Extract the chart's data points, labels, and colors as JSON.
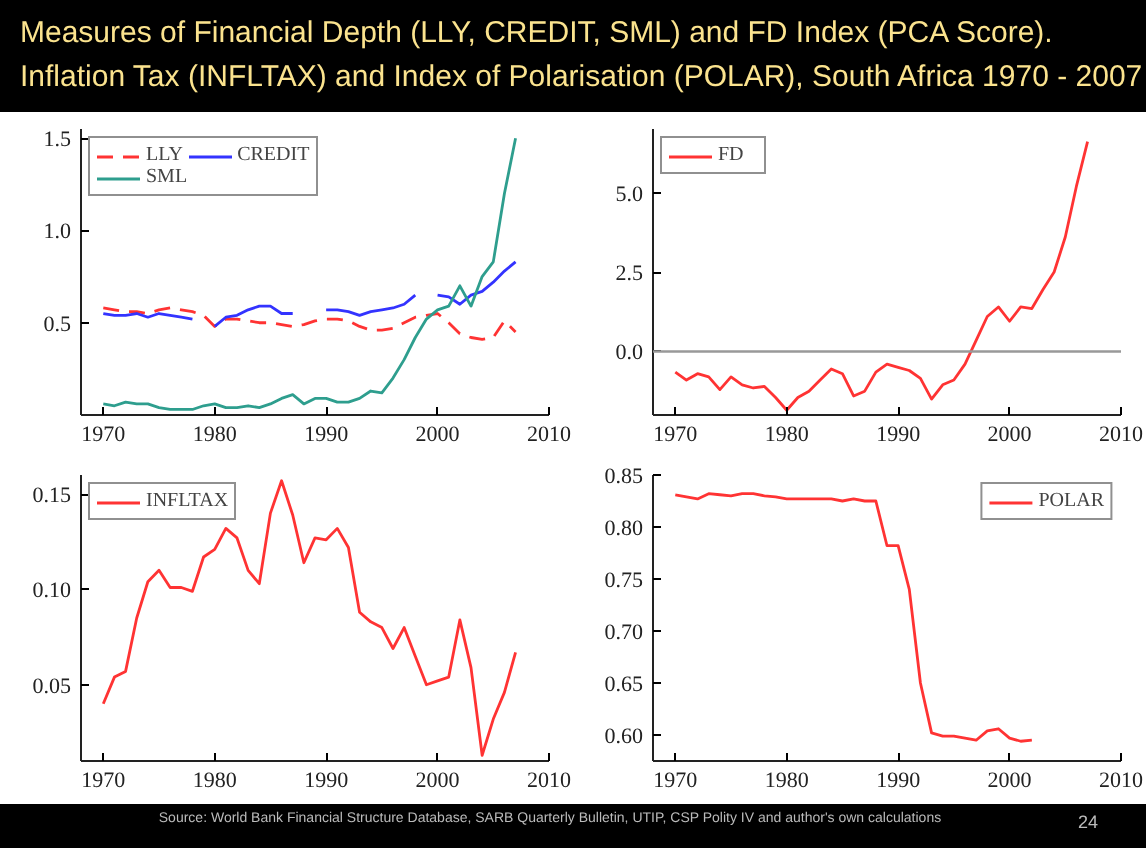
{
  "chart_data": [
    {
      "type": "line",
      "title": "Measures of Financial Depth (LLY, CREDIT, SML) and FD Index (PCA Score).",
      "subtitle": "Inflation Tax (INFLTAX) and Index of Polarisation (POLAR), South Africa 1970 - 2007",
      "legend": "top left",
      "x": [
        1970,
        1971,
        1972,
        1973,
        1974,
        1975,
        1976,
        1977,
        1978,
        1979,
        1980,
        1981,
        1982,
        1983,
        1984,
        1985,
        1986,
        1987,
        1988,
        1989,
        1990,
        1991,
        1992,
        1993,
        1994,
        1995,
        1996,
        1997,
        1998,
        1999,
        2000,
        2001,
        2002,
        2003,
        2004,
        2005,
        2006,
        2007
      ],
      "xlim": [
        1968,
        2010
      ],
      "xticks": [
        1970,
        1980,
        1990,
        2000,
        2010
      ],
      "ylim": [
        0,
        1.55
      ],
      "yticks": [
        0.5,
        {
          "value": 1,
          "label": "1.0"
        },
        1.5
      ],
      "series": [
        {
          "name": "LLY",
          "color": "#ff3333",
          "line_style": "dashed",
          "values": [
            0.58,
            0.57,
            0.56,
            0.56,
            0.55,
            0.57,
            0.58,
            0.57,
            0.56,
            0.54,
            0.48,
            0.52,
            0.52,
            0.51,
            0.5,
            0.5,
            0.49,
            0.48,
            0.49,
            0.51,
            0.52,
            0.52,
            0.51,
            0.48,
            0.46,
            0.46,
            0.47,
            0.5,
            0.53,
            0.54,
            0.55,
            0.5,
            0.44,
            0.42,
            0.41,
            0.42,
            0.51,
            0.45
          ]
        },
        {
          "name": "CREDIT",
          "color": "#3333ff",
          "values": [
            0.55,
            0.54,
            0.54,
            0.55,
            0.53,
            0.55,
            0.54,
            0.53,
            0.52,
            null,
            0.48,
            0.53,
            0.54,
            0.57,
            0.59,
            0.59,
            0.55,
            0.55,
            null,
            null,
            0.57,
            0.57,
            0.56,
            0.54,
            0.56,
            0.57,
            0.58,
            0.6,
            0.65,
            null,
            0.65,
            0.64,
            0.6,
            0.65,
            0.67,
            0.72,
            0.78,
            0.83
          ]
        },
        {
          "name": "SML",
          "color": "#2e9e8e",
          "values": [
            0.06,
            0.05,
            0.07,
            0.06,
            0.06,
            0.04,
            0.03,
            0.03,
            0.03,
            0.05,
            0.06,
            0.04,
            0.04,
            0.05,
            0.04,
            0.06,
            0.09,
            0.11,
            0.06,
            0.09,
            0.09,
            0.07,
            0.07,
            0.09,
            0.13,
            0.12,
            0.2,
            0.3,
            0.42,
            0.52,
            0.57,
            0.59,
            0.7,
            0.59,
            0.75,
            0.83,
            1.2,
            1.5
          ]
        }
      ]
    },
    {
      "type": "line",
      "legend": "top left",
      "x": [
        1970,
        1971,
        1972,
        1973,
        1974,
        1975,
        1976,
        1977,
        1978,
        1979,
        1980,
        1981,
        1982,
        1983,
        1984,
        1985,
        1986,
        1987,
        1988,
        1989,
        1990,
        1991,
        1992,
        1993,
        1994,
        1995,
        1996,
        1997,
        1998,
        1999,
        2000,
        2001,
        2002,
        2003,
        2004,
        2005,
        2006,
        2007
      ],
      "xlim": [
        1968,
        2010
      ],
      "xticks": [
        1970,
        1980,
        1990,
        2000,
        2010
      ],
      "ylim": [
        -2,
        7
      ],
      "yticks": [
        {
          "value": 0,
          "label": "0.0"
        },
        2.5,
        {
          "value": 5,
          "label": "5.0"
        }
      ],
      "ref_lines": [
        {
          "axis": "y",
          "value": 0,
          "color": "#999999"
        }
      ],
      "series": [
        {
          "name": "FD",
          "color": "#ff3333",
          "values": [
            -0.65,
            -0.9,
            -0.7,
            -0.8,
            -1.2,
            -0.8,
            -1.05,
            -1.15,
            -1.1,
            -1.45,
            -1.85,
            -1.45,
            -1.25,
            -0.9,
            -0.55,
            -0.7,
            -1.4,
            -1.25,
            -0.65,
            -0.4,
            -0.5,
            -0.6,
            -0.85,
            -1.5,
            -1.05,
            -0.9,
            -0.4,
            0.35,
            1.1,
            1.4,
            0.95,
            1.4,
            1.35,
            1.95,
            2.5,
            3.6,
            5.2,
            6.6
          ]
        }
      ]
    },
    {
      "type": "line",
      "legend": "top left",
      "x": [
        1970,
        1971,
        1972,
        1973,
        1974,
        1975,
        1976,
        1977,
        1978,
        1979,
        1980,
        1981,
        1982,
        1983,
        1984,
        1985,
        1986,
        1987,
        1988,
        1989,
        1990,
        1991,
        1992,
        1993,
        1994,
        1995,
        1996,
        1997,
        1998,
        1999,
        2000,
        2001,
        2002,
        2003,
        2004,
        2005,
        2006,
        2007
      ],
      "xlim": [
        1968,
        2010
      ],
      "xticks": [
        1970,
        1980,
        1990,
        2000,
        2010
      ],
      "ylim": [
        0.01,
        0.16
      ],
      "yticks": [
        0.05,
        {
          "value": 0.1,
          "label": "0.10"
        },
        0.15
      ],
      "series": [
        {
          "name": "INFLTAX",
          "color": "#ff3333",
          "values": [
            0.04,
            0.054,
            0.057,
            0.085,
            0.104,
            0.11,
            0.101,
            0.101,
            0.099,
            0.117,
            0.121,
            0.132,
            0.127,
            0.11,
            0.103,
            0.14,
            0.157,
            0.139,
            0.114,
            0.127,
            0.126,
            0.132,
            0.122,
            0.088,
            0.083,
            0.08,
            0.069,
            0.08,
            0.065,
            0.05,
            0.052,
            0.054,
            0.084,
            0.059,
            0.013,
            0.032,
            0.046,
            0.067
          ]
        }
      ]
    },
    {
      "type": "line",
      "legend": "top right",
      "annotations": [
        "Source: World Bank Financial Structure Database, SARB Quarterly Bulletin, UTIP, CSP Polity IV and author's own calculations",
        "24"
      ],
      "x": [
        1970,
        1971,
        1972,
        1973,
        1974,
        1975,
        1976,
        1977,
        1978,
        1979,
        1980,
        1981,
        1982,
        1983,
        1984,
        1985,
        1986,
        1987,
        1988,
        1989,
        1990,
        1991,
        1992,
        1993,
        1994,
        1995,
        1996,
        1997,
        1998,
        1999,
        2000,
        2001,
        2002
      ],
      "xlim": [
        1968,
        2010
      ],
      "xticks": [
        1970,
        1980,
        1990,
        2000,
        2010
      ],
      "ylim": [
        0.575,
        0.85
      ],
      "yticks": [
        {
          "value": 0.6,
          "label": "0.60"
        },
        0.65,
        {
          "value": 0.7,
          "label": "0.70"
        },
        0.75,
        {
          "value": 0.8,
          "label": "0.80"
        },
        0.85
      ],
      "series": [
        {
          "name": "POLAR",
          "color": "#ff3333",
          "values": [
            0.831,
            0.829,
            0.827,
            0.832,
            0.831,
            0.83,
            0.832,
            0.832,
            0.83,
            0.829,
            0.827,
            0.827,
            0.827,
            0.827,
            0.827,
            0.825,
            0.827,
            0.825,
            0.825,
            0.782,
            0.782,
            0.74,
            0.65,
            0.602,
            0.599,
            0.599,
            0.597,
            0.595,
            0.604,
            0.606,
            0.597,
            0.594,
            0.595
          ]
        }
      ]
    }
  ]
}
